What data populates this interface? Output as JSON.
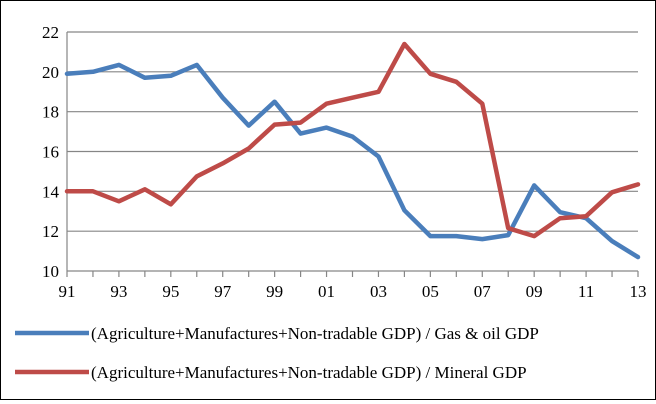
{
  "chart_data": {
    "type": "line",
    "title": "",
    "xlabel": "",
    "ylabel": "",
    "x": [
      "91",
      "92",
      "93",
      "94",
      "95",
      "96",
      "97",
      "98",
      "99",
      "00",
      "01",
      "02",
      "03",
      "04",
      "05",
      "06",
      "07",
      "08",
      "09",
      "10",
      "11",
      "12",
      "13"
    ],
    "x_tick_labels": [
      "91",
      "93",
      "95",
      "97",
      "99",
      "01",
      "03",
      "05",
      "07",
      "09",
      "11",
      "13"
    ],
    "ylim": [
      10,
      22
    ],
    "y_ticks": [
      10,
      12,
      14,
      16,
      18,
      20,
      22
    ],
    "grid": "horizontal",
    "legend_position": "bottom",
    "series": [
      {
        "name": "(Agriculture+Manufactures+Non-tradable GDP) / Gas & oil GDP",
        "color": "#4a7ebb",
        "values": [
          19.9,
          20.0,
          20.35,
          19.7,
          19.8,
          20.35,
          18.7,
          17.3,
          18.5,
          16.9,
          17.2,
          16.75,
          15.75,
          13.05,
          11.75,
          11.75,
          11.6,
          11.8,
          14.3,
          12.95,
          12.65,
          11.5,
          10.7
        ]
      },
      {
        "name": "(Agriculture+Manufactures+Non-tradable GDP) / Mineral GDP",
        "color": "#be4b48",
        "values": [
          14.0,
          14.0,
          13.5,
          14.1,
          13.35,
          14.75,
          15.4,
          16.15,
          17.35,
          17.45,
          18.4,
          18.7,
          19.0,
          21.4,
          19.9,
          19.5,
          18.4,
          12.15,
          11.75,
          12.65,
          12.75,
          13.95,
          14.35
        ]
      }
    ]
  }
}
